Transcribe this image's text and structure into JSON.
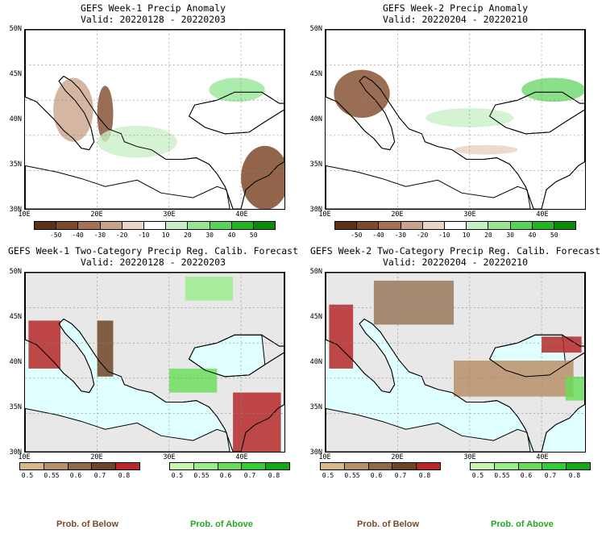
{
  "panels": [
    {
      "title": "GEFS Week-1 Precip Anomaly",
      "valid": "Valid: 20220128 - 20220203"
    },
    {
      "title": "GEFS Week-2 Precip Anomaly",
      "valid": "Valid: 20220204 - 20220210"
    },
    {
      "title": "GEFS Week-1 Two-Category Precip Reg. Calib. Forecast",
      "valid": "Valid: 20220128 - 20220203"
    },
    {
      "title": "GEFS Week-2 Two-Category Precip Reg. Calib. Forecast",
      "valid": "Valid: 20220204 - 20220210"
    }
  ],
  "lat_labels": [
    "50N",
    "45N",
    "40N",
    "35N",
    "30N"
  ],
  "lon_labels": [
    "10E",
    "20E",
    "30E",
    "40E"
  ],
  "anomaly_colorbar": {
    "labels": [
      "-50",
      "-40",
      "-30",
      "-20",
      "-10",
      "10",
      "20",
      "30",
      "40",
      "50"
    ],
    "colors": [
      "#5c3319",
      "#7f4a2a",
      "#a47155",
      "#c9a48c",
      "#ead6c8",
      "#ffffff",
      "#c8f0c8",
      "#96e696",
      "#5ad25a",
      "#23b423",
      "#0a8c0a"
    ]
  },
  "below_colorbar": {
    "labels": [
      "0.5",
      "0.55",
      "0.6",
      "0.7",
      "0.8"
    ],
    "colors": [
      "#d8b88a",
      "#b8906a",
      "#8f6a4a",
      "#6e4526",
      "#b52828"
    ]
  },
  "above_colorbar": {
    "labels": [
      "0.5",
      "0.55",
      "0.6",
      "0.7",
      "0.8"
    ],
    "colors": [
      "#c8f7b0",
      "#98ee88",
      "#66dd55",
      "#33cc33",
      "#14a814"
    ]
  },
  "legend": {
    "below_label": "Prob. of Below",
    "above_label": "Prob. of Above",
    "below_color": "#7a4a2a",
    "above_color": "#22aa22"
  },
  "map_colors": {
    "sea": "#e0ffff",
    "land_neutral": "#e8e8e8",
    "coast": "#000000"
  }
}
